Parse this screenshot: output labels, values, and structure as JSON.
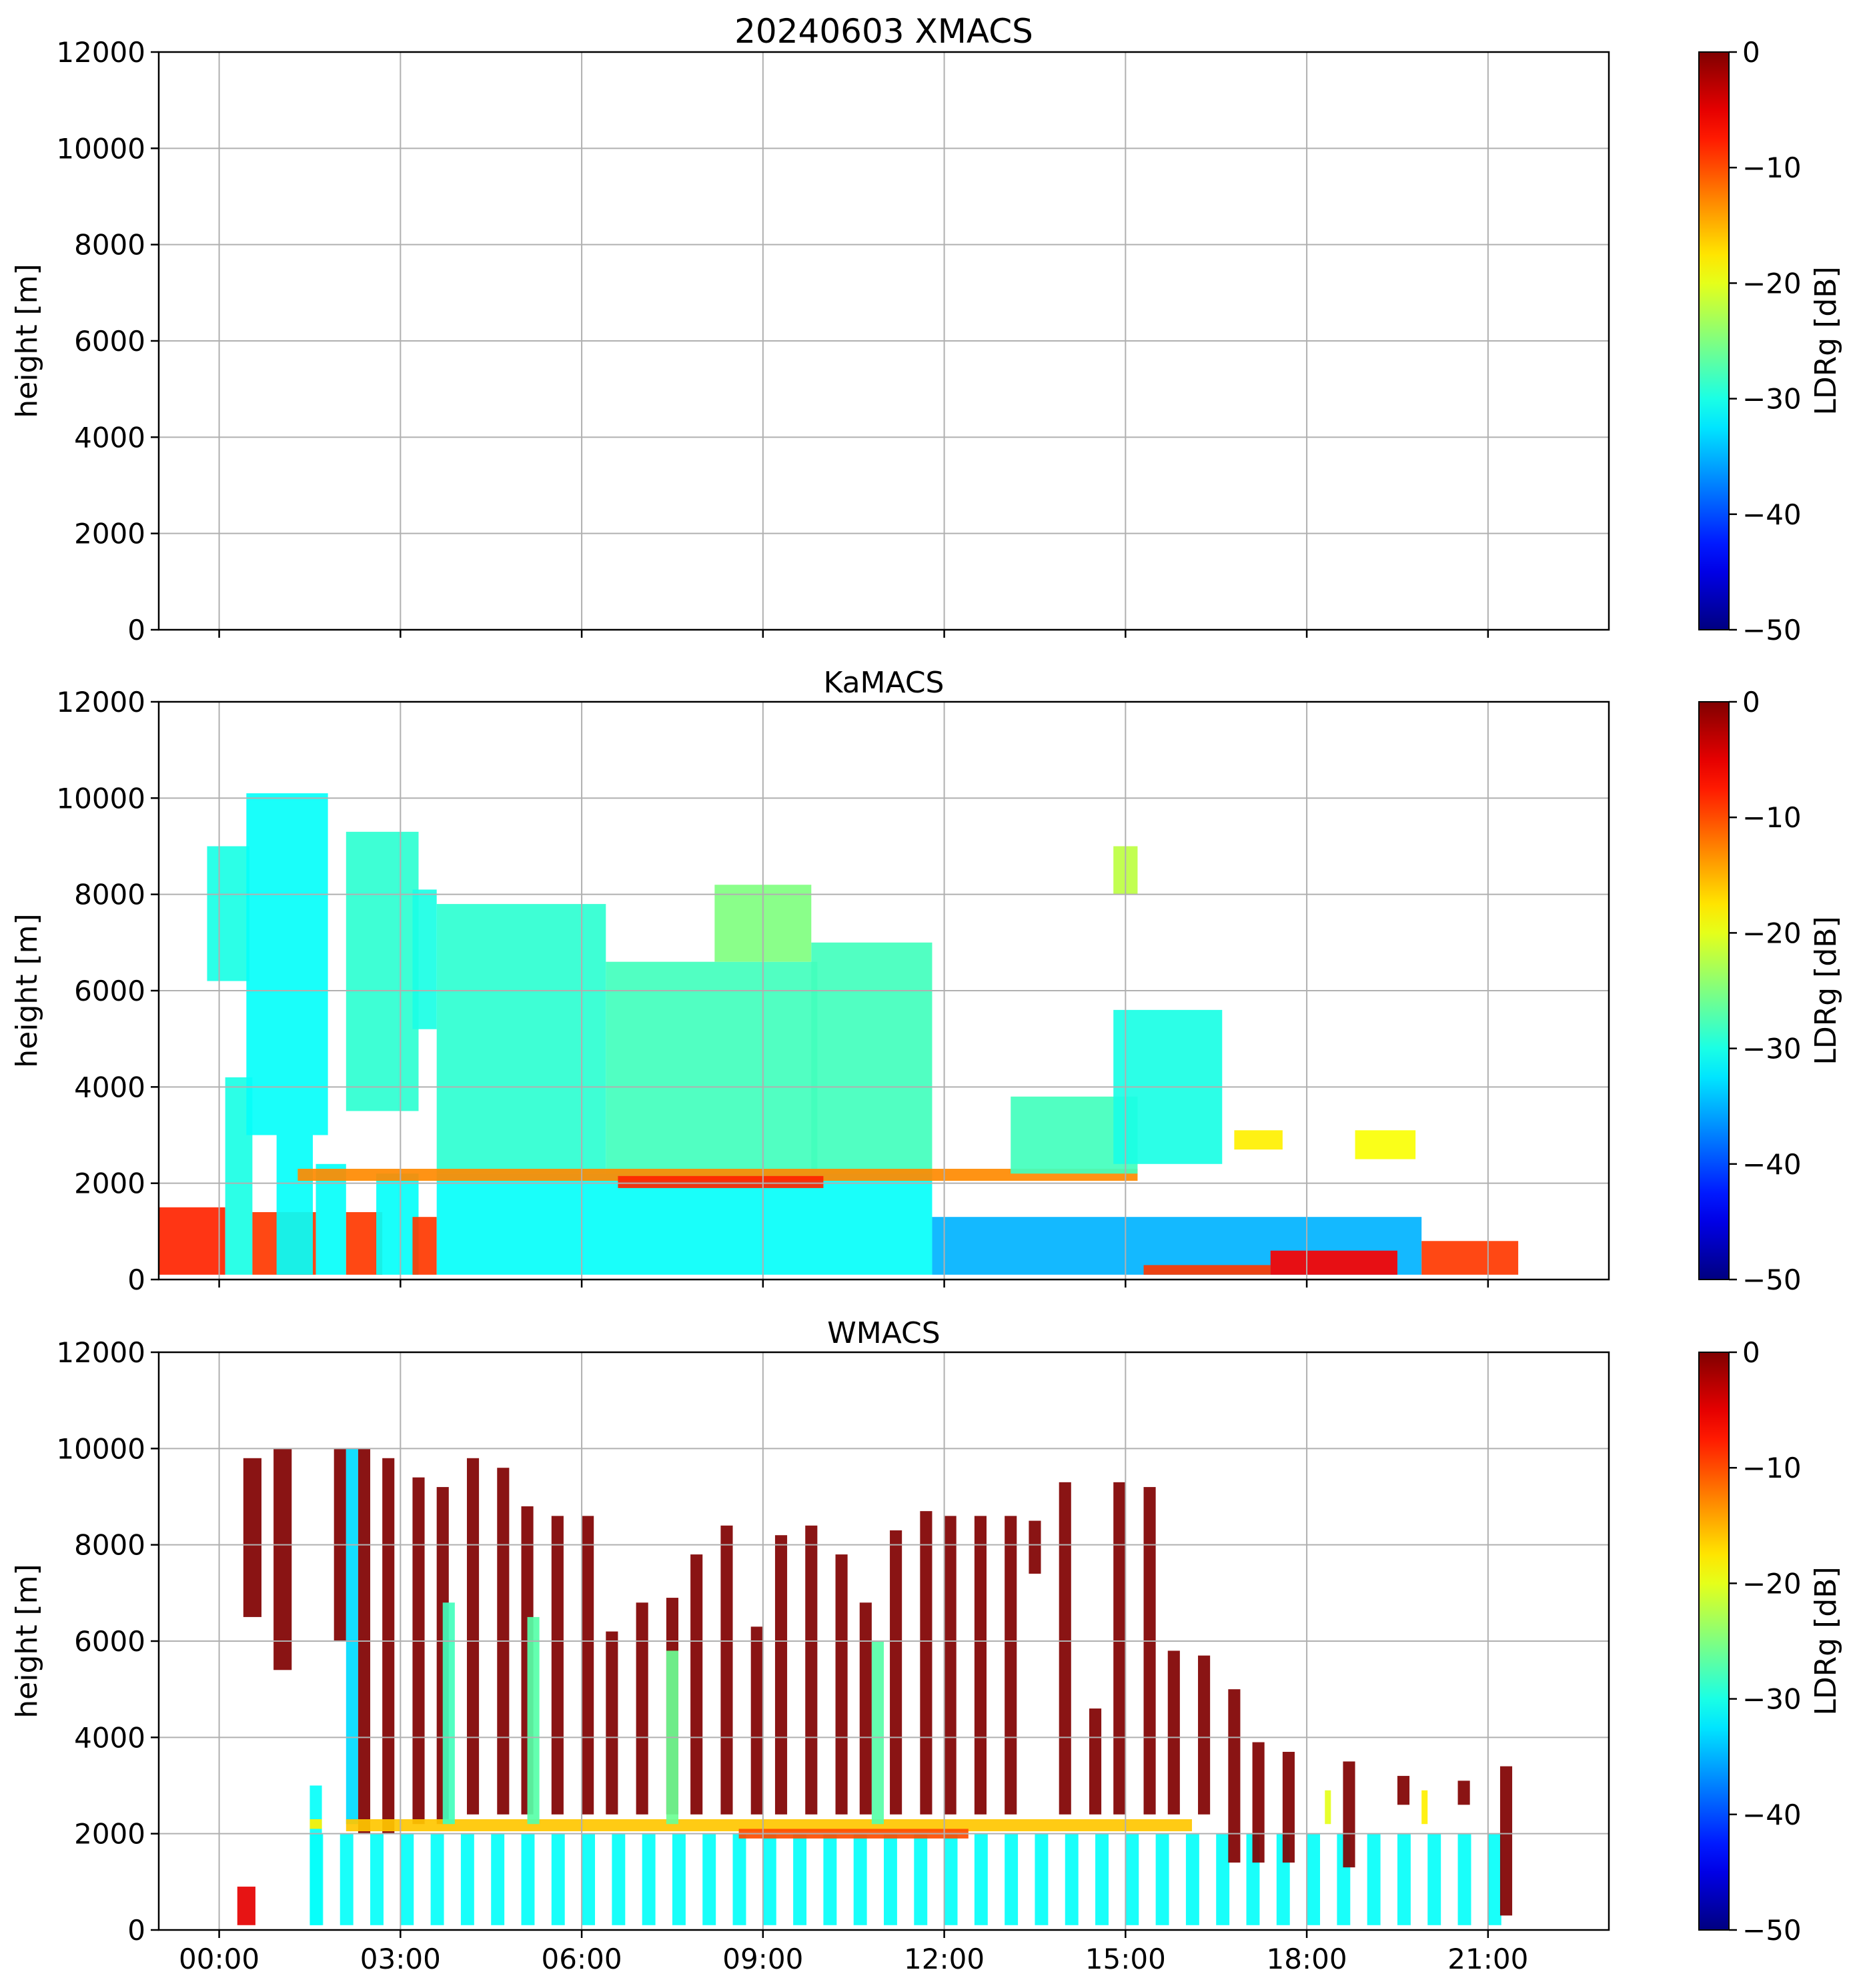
{
  "chart_data": {
    "type": "heatmap",
    "date": "20240603",
    "x": {
      "label": "",
      "range_hours": [
        -1,
        23
      ],
      "ticks_hours": [
        0,
        3,
        6,
        9,
        12,
        15,
        18,
        21
      ],
      "tick_labels": [
        "00:00",
        "03:00",
        "06:00",
        "09:00",
        "12:00",
        "15:00",
        "18:00",
        "21:00"
      ]
    },
    "y": {
      "label": "height [m]",
      "range": [
        0,
        12000
      ],
      "ticks": [
        0,
        2000,
        4000,
        6000,
        8000,
        10000,
        12000
      ],
      "tick_labels": [
        "0",
        "2000",
        "4000",
        "6000",
        "8000",
        "10000",
        "12000"
      ]
    },
    "colorbar": {
      "label": "LDRg [dB]",
      "colormap": "jet",
      "range": [
        -50,
        0
      ],
      "ticks": [
        -50,
        -40,
        -30,
        -20,
        -10,
        0
      ],
      "tick_labels": [
        "−50",
        "−40",
        "−30",
        "−20",
        "−10",
        "0"
      ]
    },
    "panels": [
      {
        "id": "xmacs",
        "title": "20240603 XMACS",
        "show_x_tick_labels": false,
        "regions": []
      },
      {
        "id": "kamacs",
        "title": "KaMACS",
        "show_x_tick_labels": false,
        "regions": [
          {
            "t0": -1.0,
            "t1": 0.1,
            "h0": 100,
            "h1": 1500,
            "v": -8
          },
          {
            "t0": 0.1,
            "t1": 0.55,
            "h0": 100,
            "h1": 4200,
            "v": -30
          },
          {
            "t0": 0.55,
            "t1": 1.6,
            "h0": 100,
            "h1": 1400,
            "v": -9
          },
          {
            "t0": -0.2,
            "t1": 0.5,
            "h0": 6200,
            "h1": 9000,
            "v": -30
          },
          {
            "t0": 0.45,
            "t1": 1.8,
            "h0": 3000,
            "h1": 10100,
            "v": -31
          },
          {
            "t0": 0.95,
            "t1": 1.55,
            "h0": 100,
            "h1": 3000,
            "v": -31
          },
          {
            "t0": 1.6,
            "t1": 2.1,
            "h0": 100,
            "h1": 2400,
            "v": -31
          },
          {
            "t0": 2.1,
            "t1": 3.3,
            "h0": 3500,
            "h1": 9300,
            "v": -29
          },
          {
            "t0": 2.1,
            "t1": 2.7,
            "h0": 100,
            "h1": 1400,
            "v": -9
          },
          {
            "t0": 2.6,
            "t1": 3.3,
            "h0": 100,
            "h1": 2200,
            "v": -31
          },
          {
            "t0": 3.2,
            "t1": 3.6,
            "h0": 100,
            "h1": 1300,
            "v": -9
          },
          {
            "t0": 3.2,
            "t1": 3.6,
            "h0": 5200,
            "h1": 8100,
            "v": -30
          },
          {
            "t0": 3.6,
            "t1": 11.8,
            "h0": 100,
            "h1": 2200,
            "v": -31
          },
          {
            "t0": 3.6,
            "t1": 6.4,
            "h0": 2200,
            "h1": 7800,
            "v": -29
          },
          {
            "t0": 6.4,
            "t1": 9.9,
            "h0": 2200,
            "h1": 6600,
            "v": -28
          },
          {
            "t0": 8.2,
            "t1": 9.8,
            "h0": 6600,
            "h1": 8200,
            "v": -25
          },
          {
            "t0": 9.8,
            "t1": 11.8,
            "h0": 2200,
            "h1": 7000,
            "v": -28
          },
          {
            "t0": 1.3,
            "t1": 15.2,
            "h0": 2050,
            "h1": 2300,
            "v": -13
          },
          {
            "t0": 6.6,
            "t1": 10.0,
            "h0": 1900,
            "h1": 2150,
            "v": -8
          },
          {
            "t0": 11.8,
            "t1": 19.9,
            "h0": 100,
            "h1": 1300,
            "v": -35
          },
          {
            "t0": 13.1,
            "t1": 15.2,
            "h0": 2200,
            "h1": 3800,
            "v": -28
          },
          {
            "t0": 14.8,
            "t1": 16.6,
            "h0": 2400,
            "h1": 5600,
            "v": -30
          },
          {
            "t0": 14.8,
            "t1": 15.2,
            "h0": 8000,
            "h1": 9000,
            "v": -22
          },
          {
            "t0": 15.3,
            "t1": 17.4,
            "h0": 100,
            "h1": 300,
            "v": -9
          },
          {
            "t0": 17.4,
            "t1": 19.5,
            "h0": 100,
            "h1": 600,
            "v": -6
          },
          {
            "t0": 16.8,
            "t1": 17.6,
            "h0": 2700,
            "h1": 3100,
            "v": -18
          },
          {
            "t0": 18.8,
            "t1": 19.8,
            "h0": 2500,
            "h1": 3100,
            "v": -19
          },
          {
            "t0": 19.9,
            "t1": 21.5,
            "h0": 100,
            "h1": 800,
            "v": -9
          }
        ]
      },
      {
        "id": "wmacs",
        "title": "WMACS",
        "show_x_tick_labels": true,
        "regions": [
          {
            "t0": 0.4,
            "t1": 0.7,
            "h0": 6500,
            "h1": 9800,
            "v": 0
          },
          {
            "t0": 0.9,
            "t1": 1.2,
            "h0": 5400,
            "h1": 10000,
            "v": 0
          },
          {
            "t0": 1.5,
            "t1": 1.7,
            "h0": 100,
            "h1": 3000,
            "v": -31
          },
          {
            "t0": 1.9,
            "t1": 2.1,
            "h0": 6000,
            "h1": 10000,
            "v": 0
          },
          {
            "t0": 2.1,
            "t1": 2.3,
            "h0": 2200,
            "h1": 10000,
            "v": -33
          },
          {
            "t0": 2.3,
            "t1": 2.5,
            "h0": 2000,
            "h1": 10000,
            "v": 0
          },
          {
            "t0": 2.7,
            "t1": 2.9,
            "h0": 2000,
            "h1": 9800,
            "v": 0
          },
          {
            "t0": 3.2,
            "t1": 3.4,
            "h0": 2200,
            "h1": 9400,
            "v": 0
          },
          {
            "t0": 3.6,
            "t1": 3.8,
            "h0": 2200,
            "h1": 9200,
            "v": 0
          },
          {
            "t0": 4.1,
            "t1": 4.3,
            "h0": 2400,
            "h1": 9800,
            "v": 0
          },
          {
            "t0": 4.6,
            "t1": 4.8,
            "h0": 2400,
            "h1": 9600,
            "v": 0
          },
          {
            "t0": 5.0,
            "t1": 5.2,
            "h0": 2400,
            "h1": 8800,
            "v": 0
          },
          {
            "t0": 5.5,
            "t1": 5.7,
            "h0": 2400,
            "h1": 8600,
            "v": 0
          },
          {
            "t0": 6.0,
            "t1": 6.2,
            "h0": 2400,
            "h1": 8600,
            "v": 0
          },
          {
            "t0": 6.4,
            "t1": 6.6,
            "h0": 2400,
            "h1": 6200,
            "v": 0
          },
          {
            "t0": 6.9,
            "t1": 7.1,
            "h0": 2400,
            "h1": 6800,
            "v": 0
          },
          {
            "t0": 7.4,
            "t1": 7.6,
            "h0": 2400,
            "h1": 6900,
            "v": 0
          },
          {
            "t0": 7.8,
            "t1": 8.0,
            "h0": 2400,
            "h1": 7800,
            "v": 0
          },
          {
            "t0": 8.3,
            "t1": 8.5,
            "h0": 2400,
            "h1": 8400,
            "v": 0
          },
          {
            "t0": 8.8,
            "t1": 9.0,
            "h0": 2400,
            "h1": 6300,
            "v": 0
          },
          {
            "t0": 9.2,
            "t1": 9.4,
            "h0": 2400,
            "h1": 8200,
            "v": 0
          },
          {
            "t0": 9.7,
            "t1": 9.9,
            "h0": 2400,
            "h1": 8400,
            "v": 0
          },
          {
            "t0": 10.2,
            "t1": 10.4,
            "h0": 2400,
            "h1": 7800,
            "v": 0
          },
          {
            "t0": 10.6,
            "t1": 10.8,
            "h0": 2400,
            "h1": 6800,
            "v": 0
          },
          {
            "t0": 11.1,
            "t1": 11.3,
            "h0": 2400,
            "h1": 8300,
            "v": 0
          },
          {
            "t0": 11.6,
            "t1": 11.8,
            "h0": 2400,
            "h1": 8700,
            "v": 0
          },
          {
            "t0": 12.0,
            "t1": 12.2,
            "h0": 2400,
            "h1": 8600,
            "v": 0
          },
          {
            "t0": 12.5,
            "t1": 12.7,
            "h0": 2400,
            "h1": 8600,
            "v": 0
          },
          {
            "t0": 13.0,
            "t1": 13.2,
            "h0": 2400,
            "h1": 8600,
            "v": 0
          },
          {
            "t0": 13.4,
            "t1": 13.6,
            "h0": 7400,
            "h1": 8500,
            "v": 0
          },
          {
            "t0": 13.9,
            "t1": 14.1,
            "h0": 2400,
            "h1": 9300,
            "v": 0
          },
          {
            "t0": 14.4,
            "t1": 14.6,
            "h0": 2400,
            "h1": 4600,
            "v": 0
          },
          {
            "t0": 14.8,
            "t1": 15.0,
            "h0": 2400,
            "h1": 9300,
            "v": 0
          },
          {
            "t0": 15.3,
            "t1": 15.5,
            "h0": 2400,
            "h1": 9200,
            "v": 0
          },
          {
            "t0": 15.7,
            "t1": 15.9,
            "h0": 2400,
            "h1": 5800,
            "v": 0
          },
          {
            "t0": 16.2,
            "t1": 16.4,
            "h0": 2400,
            "h1": 5700,
            "v": 0
          },
          {
            "t0": 16.7,
            "t1": 16.9,
            "h0": 1400,
            "h1": 5000,
            "v": 0
          },
          {
            "t0": 17.1,
            "t1": 17.3,
            "h0": 1400,
            "h1": 3900,
            "v": 0
          },
          {
            "t0": 17.6,
            "t1": 17.8,
            "h0": 1400,
            "h1": 3700,
            "v": 0
          },
          {
            "t0": 18.6,
            "t1": 18.8,
            "h0": 1300,
            "h1": 3500,
            "v": 0
          },
          {
            "t0": 19.5,
            "t1": 19.7,
            "h0": 2600,
            "h1": 3200,
            "v": 0
          },
          {
            "t0": 20.5,
            "t1": 20.7,
            "h0": 2600,
            "h1": 3100,
            "v": 0
          },
          {
            "t0": 21.2,
            "t1": 21.4,
            "h0": 300,
            "h1": 3400,
            "v": 0
          },
          {
            "t0": 1.5,
            "t1": 1.7,
            "h0": 2100,
            "h1": 2300,
            "v": -18
          },
          {
            "t0": 2.1,
            "t1": 16.1,
            "h0": 2050,
            "h1": 2300,
            "v": -16
          },
          {
            "t0": 8.6,
            "t1": 12.4,
            "h0": 1900,
            "h1": 2100,
            "v": -10
          },
          {
            "t0": 0.3,
            "t1": 0.6,
            "h0": 100,
            "h1": 900,
            "v": -5
          },
          {
            "t0": 3.7,
            "t1": 3.9,
            "h0": 2200,
            "h1": 6800,
            "v": -28
          },
          {
            "t0": 5.1,
            "t1": 5.3,
            "h0": 2200,
            "h1": 6500,
            "v": -27
          },
          {
            "t0": 7.4,
            "t1": 7.6,
            "h0": 2200,
            "h1": 5800,
            "v": -26
          },
          {
            "t0": 10.8,
            "t1": 11.0,
            "h0": 2200,
            "h1": 6000,
            "v": -27
          },
          {
            "t0": 18.3,
            "t1": 18.4,
            "h0": 2200,
            "h1": 2900,
            "v": -20
          },
          {
            "t0": 19.9,
            "t1": 20.0,
            "h0": 2200,
            "h1": 2900,
            "v": -18
          }
        ],
        "strip_columns": {
          "t0": 1.5,
          "t1": 21.2,
          "step": 0.5,
          "width": 0.22,
          "h0": 100,
          "h1": 2000,
          "v": -31
        }
      }
    ]
  }
}
